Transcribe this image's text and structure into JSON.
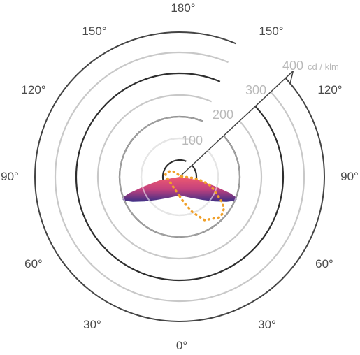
{
  "chart_data": {
    "type": "polar",
    "title": "",
    "radial_unit": "cd / klm",
    "radial_ticks": [
      100,
      200,
      300,
      400
    ],
    "radial_max": 400,
    "angle_labels": [
      {
        "key": "top",
        "text": "180°"
      },
      {
        "key": "upper-left-150",
        "text": "150°"
      },
      {
        "key": "upper-right-150",
        "text": "150°"
      },
      {
        "key": "left-120",
        "text": "120°"
      },
      {
        "key": "right-120",
        "text": "120°"
      },
      {
        "key": "left-90",
        "text": "90°"
      },
      {
        "key": "right-90",
        "text": "90°"
      },
      {
        "key": "left-60",
        "text": "60°"
      },
      {
        "key": "right-60",
        "text": "60°"
      },
      {
        "key": "lower-left-30",
        "text": "30°"
      },
      {
        "key": "lower-right-30",
        "text": "30°"
      },
      {
        "key": "bottom",
        "text": "0°"
      }
    ],
    "series": [
      {
        "style": "filled-gradient",
        "gradient_colors": [
          "#ef5a6f",
          "#c3417d",
          "#3b2f86"
        ],
        "angles_deg": [
          0,
          15,
          30,
          45,
          55,
          62,
          66,
          68,
          70,
          72,
          75,
          80,
          90
        ],
        "values": [
          90,
          100,
          120,
          160,
          210,
          260,
          290,
          300,
          295,
          260,
          180,
          100,
          0
        ]
      },
      {
        "style": "dotted-outline",
        "color": "#f0a02a",
        "angles_deg": [
          0,
          10,
          20,
          30,
          40,
          45,
          50,
          55,
          60,
          65,
          70,
          75,
          80,
          85,
          90,
          100,
          110,
          130,
          150,
          170,
          180,
          190,
          200,
          210,
          220,
          230,
          240,
          250,
          260,
          270
        ],
        "values": [
          95,
          130,
          185,
          245,
          265,
          280,
          275,
          265,
          235,
          200,
          175,
          150,
          110,
          60,
          20,
          10,
          5,
          2,
          2,
          2,
          2,
          2,
          4,
          10,
          25,
          40,
          55,
          65,
          70,
          65
        ]
      }
    ]
  }
}
